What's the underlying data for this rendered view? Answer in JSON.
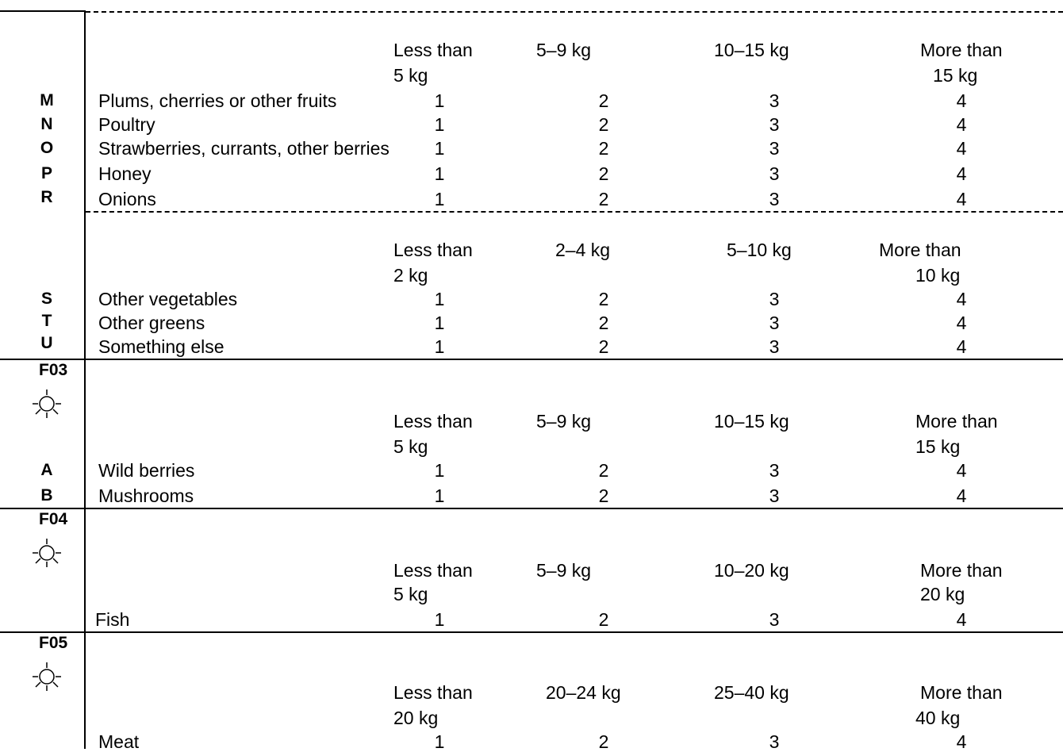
{
  "sections": [
    {
      "id": "mnopr",
      "headers": [
        "Less than",
        "5 kg",
        "5–9 kg",
        "10–15 kg",
        "More than",
        "15 kg"
      ],
      "letters": [
        "M",
        "N",
        "O",
        "P",
        "R"
      ],
      "rows": [
        {
          "label": "Plums, cherries or other fruits",
          "values": [
            "1",
            "2",
            "3",
            "4"
          ]
        },
        {
          "label": "Poultry",
          "values": [
            "1",
            "2",
            "3",
            "4"
          ]
        },
        {
          "label": "Strawberries, currants, other berries",
          "values": [
            "1",
            "2",
            "3",
            "4"
          ]
        },
        {
          "label": "Honey",
          "values": [
            "1",
            "2",
            "3",
            "4"
          ]
        },
        {
          "label": "Onions",
          "values": [
            "1",
            "2",
            "3",
            "4"
          ]
        }
      ]
    },
    {
      "id": "stu",
      "headers": [
        "Less than",
        "2 kg",
        "2–4 kg",
        "5–10 kg",
        "More than",
        "10 kg"
      ],
      "letters": [
        "S",
        "T",
        "U"
      ],
      "rows": [
        {
          "label": "Other vegetables",
          "values": [
            "1",
            "2",
            "3",
            "4"
          ]
        },
        {
          "label": "Other greens",
          "values": [
            "1",
            "2",
            "3",
            "4"
          ]
        },
        {
          "label": "Something else",
          "values": [
            "1",
            "2",
            "3",
            "4"
          ]
        }
      ]
    },
    {
      "id": "f03",
      "code": "F03",
      "headers": [
        "Less than",
        "5 kg",
        "5–9 kg",
        "10–15 kg",
        "More than",
        "15 kg"
      ],
      "letters": [
        "A",
        "B"
      ],
      "rows": [
        {
          "label": "Wild berries",
          "values": [
            "1",
            "2",
            "3",
            "4"
          ]
        },
        {
          "label": "Mushrooms",
          "values": [
            "1",
            "2",
            "3",
            "4"
          ]
        }
      ]
    },
    {
      "id": "f04",
      "code": "F04",
      "headers": [
        "Less than",
        "5 kg",
        "5–9 kg",
        "10–20 kg",
        "More than",
        "20 kg"
      ],
      "rows": [
        {
          "label": "Fish",
          "values": [
            "1",
            "2",
            "3",
            "4"
          ]
        }
      ]
    },
    {
      "id": "f05",
      "code": "F05",
      "headers": [
        "Less than",
        "20 kg",
        "20–24 kg",
        "25–40 kg",
        "More than",
        "40 kg"
      ],
      "rows": [
        {
          "label": "Meat",
          "values": [
            "1",
            "2",
            "3",
            "4"
          ]
        }
      ]
    }
  ],
  "icons": {
    "card_icon": "sun-icon"
  }
}
